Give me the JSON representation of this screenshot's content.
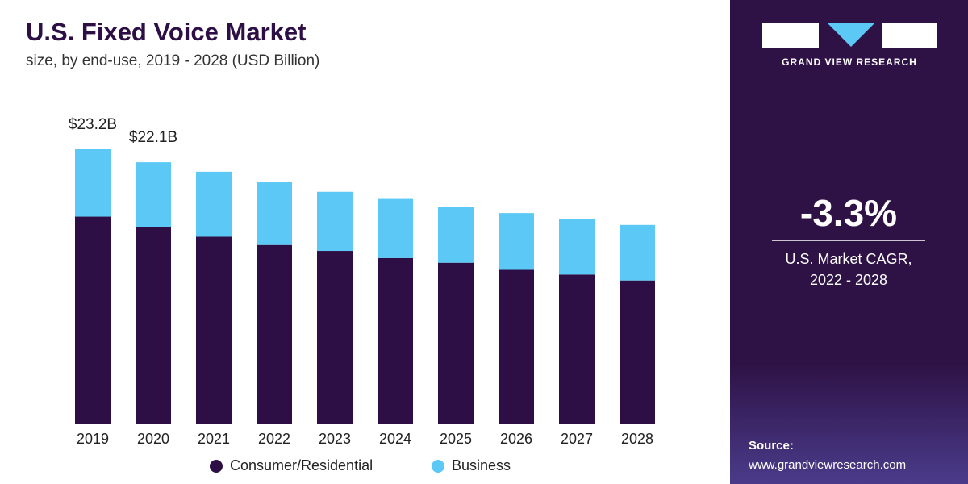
{
  "chart_data": {
    "type": "stacked-bar",
    "title": "U.S. Fixed Voice Market",
    "subtitle": "size, by end-use, 2019 - 2028 (USD Billion)",
    "categories": [
      "2019",
      "2020",
      "2021",
      "2022",
      "2023",
      "2024",
      "2025",
      "2026",
      "2027",
      "2028"
    ],
    "series": [
      {
        "name": "Consumer/Residential",
        "color": "#2d0f45",
        "values": [
          17.5,
          16.6,
          15.8,
          15.1,
          14.6,
          14.0,
          13.6,
          13.0,
          12.6,
          12.1
        ]
      },
      {
        "name": "Business",
        "color": "#5bc8f5",
        "values": [
          5.7,
          5.5,
          5.5,
          5.3,
          5.0,
          5.0,
          4.7,
          4.8,
          4.7,
          4.7
        ]
      }
    ],
    "annotations": [
      {
        "category": "2019",
        "value": 23.2,
        "label": "$23.2B"
      },
      {
        "category": "2020",
        "value": 22.1,
        "label": "$22.1B"
      }
    ]
  },
  "sidebar": {
    "brand": "GRAND VIEW RESEARCH",
    "cagr": "-3.3%",
    "cagr_caption": [
      "U.S. Market CAGR,",
      "2022 - 2028"
    ],
    "source_label": "Source:",
    "source_url": "www.grandviewresearch.com"
  }
}
